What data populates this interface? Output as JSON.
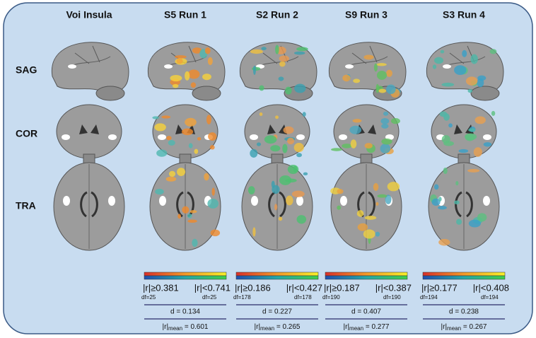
{
  "columns": [
    "Voi Insula",
    "S5 Run 1",
    "S2 Run 2",
    "S9 Run 3",
    "S3 Run 4"
  ],
  "rows": [
    "SAG",
    "COR",
    "TRA"
  ],
  "stats": [
    {
      "r_low": "|r|≥0.381",
      "r_high": "|r|<0.741",
      "df_low": "df=25",
      "df_high": "df=25",
      "d": "d = 0.134",
      "r_mean": {
        "prefix": "|r|",
        "sub": "mean",
        "value": " = 0.601"
      }
    },
    {
      "r_low": "|r|≥0.186",
      "r_high": "|r|<0.427",
      "df_low": "df=178",
      "df_high": "df=178",
      "d": "d = 0.227",
      "r_mean": {
        "prefix": "|r|",
        "sub": "mean",
        "value": " = 0.265"
      }
    },
    {
      "r_low": "|r|≥0.187",
      "r_high": "|r|<0.387",
      "df_low": "df=190",
      "df_high": "df=190",
      "d": "d = 0.407",
      "r_mean": {
        "prefix": "|r|",
        "sub": "mean",
        "value": " = 0.277"
      }
    },
    {
      "r_low": "|r|≥0.177",
      "r_high": "|r|<0.408",
      "df_low": "df=194",
      "df_high": "df=194",
      "d": "d = 0.238",
      "r_mean": {
        "prefix": "|r|",
        "sub": "mean",
        "value": " = 0.267"
      }
    }
  ]
}
